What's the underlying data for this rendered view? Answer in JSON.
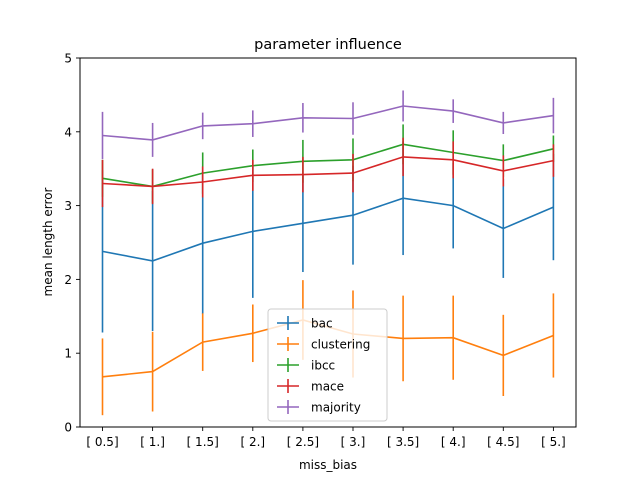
{
  "chart_data": {
    "type": "line",
    "title": "parameter influence",
    "xlabel": "miss_bias",
    "ylabel": "mean length error",
    "categories": [
      "[ 0.5]",
      "[ 1.]",
      "[ 1.5]",
      "[ 2.]",
      "[ 2.5]",
      "[ 3.]",
      "[ 3.5]",
      "[ 4.]",
      "[ 4.5]",
      "[ 5.]"
    ],
    "ylim": [
      0,
      5
    ],
    "yticks": [
      "0",
      "1",
      "2",
      "3",
      "4",
      "5"
    ],
    "grid": false,
    "legend_position": "lower-center",
    "series": [
      {
        "name": "bac",
        "color": "#1f77b4",
        "values": [
          2.38,
          2.25,
          2.49,
          2.65,
          2.76,
          2.87,
          3.1,
          3.0,
          2.69,
          2.98
        ],
        "errors": [
          1.1,
          0.95,
          0.96,
          0.9,
          0.66,
          0.67,
          0.77,
          0.58,
          0.67,
          0.72
        ]
      },
      {
        "name": "clustering",
        "color": "#ff7f0e",
        "values": [
          0.68,
          0.75,
          1.15,
          1.27,
          1.45,
          1.26,
          1.2,
          1.21,
          0.97,
          1.24
        ],
        "errors": [
          0.52,
          0.54,
          0.39,
          0.39,
          0.54,
          0.59,
          0.58,
          0.57,
          0.55,
          0.57
        ]
      },
      {
        "name": "ibcc",
        "color": "#2ca02c",
        "values": [
          3.37,
          3.26,
          3.44,
          3.54,
          3.6,
          3.62,
          3.83,
          3.72,
          3.61,
          3.77
        ],
        "errors": [
          0.25,
          0.23,
          0.28,
          0.22,
          0.29,
          0.29,
          0.27,
          0.3,
          0.22,
          0.18
        ]
      },
      {
        "name": "mace",
        "color": "#d62728",
        "values": [
          3.3,
          3.26,
          3.32,
          3.41,
          3.42,
          3.44,
          3.66,
          3.62,
          3.47,
          3.61
        ],
        "errors": [
          0.32,
          0.24,
          0.21,
          0.21,
          0.24,
          0.26,
          0.26,
          0.25,
          0.21,
          0.22
        ]
      },
      {
        "name": "majority",
        "color": "#9467bd",
        "values": [
          3.95,
          3.89,
          4.08,
          4.11,
          4.19,
          4.18,
          4.35,
          4.28,
          4.12,
          4.22
        ],
        "errors": [
          0.32,
          0.23,
          0.18,
          0.18,
          0.2,
          0.22,
          0.21,
          0.16,
          0.15,
          0.24
        ]
      }
    ]
  }
}
